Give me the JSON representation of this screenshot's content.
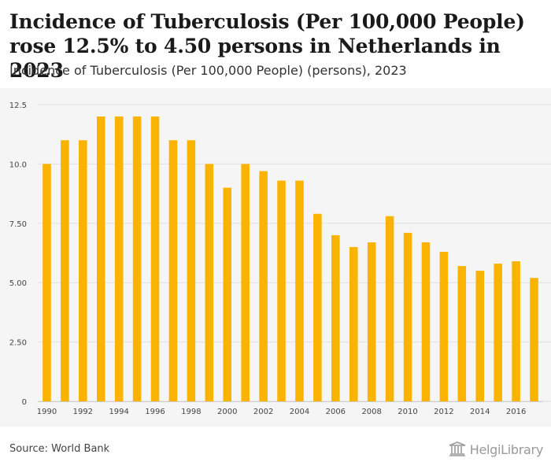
{
  "header": {
    "title": "Incidence of Tuberculosis (Per 100,000 People) rose 12.5% to 4.50 persons in Netherlands in 2023",
    "subtitle": "Incidence of Tuberculosis (Per 100,000 People) (persons), 2023"
  },
  "footer": {
    "source": "Source: World Bank",
    "logo_text": "HelgiLibrary"
  },
  "colors": {
    "bar": "#f9b300",
    "plot_background": "#f5f5f5",
    "grid": "#e0e0e0",
    "axis_text": "#444444"
  },
  "chart_data": {
    "type": "bar",
    "categories": [
      "1990",
      "1991",
      "1992",
      "1993",
      "1994",
      "1995",
      "1996",
      "1997",
      "1998",
      "1999",
      "2000",
      "2001",
      "2002",
      "2003",
      "2004",
      "2005",
      "2006",
      "2007",
      "2008",
      "2009",
      "2010",
      "2011",
      "2012",
      "2013",
      "2014",
      "2015",
      "2016",
      "2017"
    ],
    "values": [
      10.0,
      11.0,
      11.0,
      12.0,
      12.0,
      12.0,
      12.0,
      11.0,
      11.0,
      10.0,
      9.0,
      10.0,
      9.7,
      9.3,
      9.3,
      7.9,
      7.0,
      6.5,
      6.7,
      7.8,
      7.1,
      6.7,
      6.3,
      5.7,
      5.5,
      5.8,
      5.9,
      5.2
    ],
    "x_tick_labels": [
      "1990",
      "1992",
      "1994",
      "1996",
      "1998",
      "2000",
      "2002",
      "2004",
      "2006",
      "2008",
      "2010",
      "2012",
      "2014",
      "2016"
    ],
    "y_ticks": [
      0,
      2.5,
      5.0,
      7.5,
      10.0,
      12.5
    ],
    "y_tick_labels": [
      "0",
      "2.50",
      "5.00",
      "7.50",
      "10.0",
      "12.5"
    ],
    "ylim": [
      0,
      12.5
    ],
    "grid": true,
    "legend": "none"
  }
}
